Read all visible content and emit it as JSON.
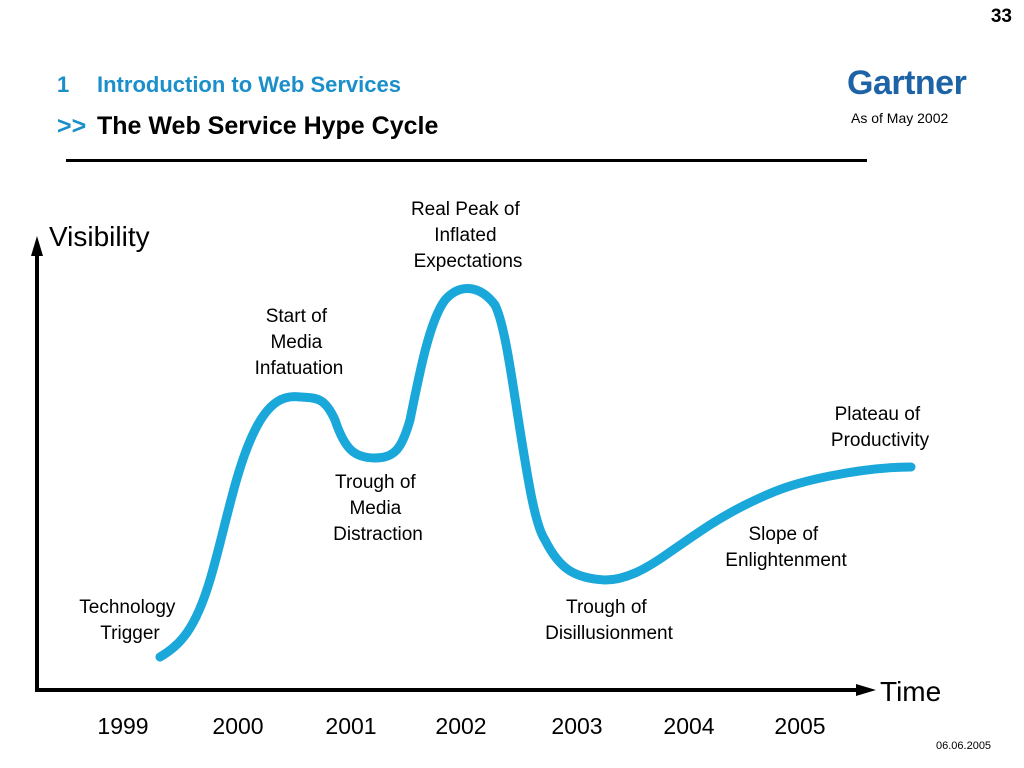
{
  "header": {
    "page_number": "33",
    "section_number": "1",
    "section_title": "Introduction to Web Services",
    "title_prefix": ">>",
    "title": "The Web Service Hype Cycle",
    "logo_text": "Gartner",
    "as_of": "As of May 2002"
  },
  "footer": {
    "date": "06.06.2005"
  },
  "colors": {
    "accent": "#1a8fc9",
    "curve": "#1aa7d9",
    "logo": "#1d63a5"
  },
  "chart_data": {
    "type": "line",
    "ylabel": "Visibility",
    "xlabel": "Time",
    "categories": [
      "1999",
      "2000",
      "2001",
      "2002",
      "2003",
      "2004",
      "2005"
    ],
    "annotations": [
      {
        "lines": [
          "Technology",
          "Trigger"
        ]
      },
      {
        "lines": [
          "Start of",
          "Media",
          "Infatuation"
        ]
      },
      {
        "lines": [
          "Trough of",
          "Media",
          "Distraction"
        ]
      },
      {
        "lines": [
          "Real Peak of",
          "Inflated",
          "Expectations"
        ]
      },
      {
        "lines": [
          "Trough of",
          "Disillusionment"
        ]
      },
      {
        "lines": [
          "Slope of",
          "Enlightenment"
        ]
      },
      {
        "lines": [
          "Plateau of",
          "Productivity"
        ]
      }
    ]
  }
}
